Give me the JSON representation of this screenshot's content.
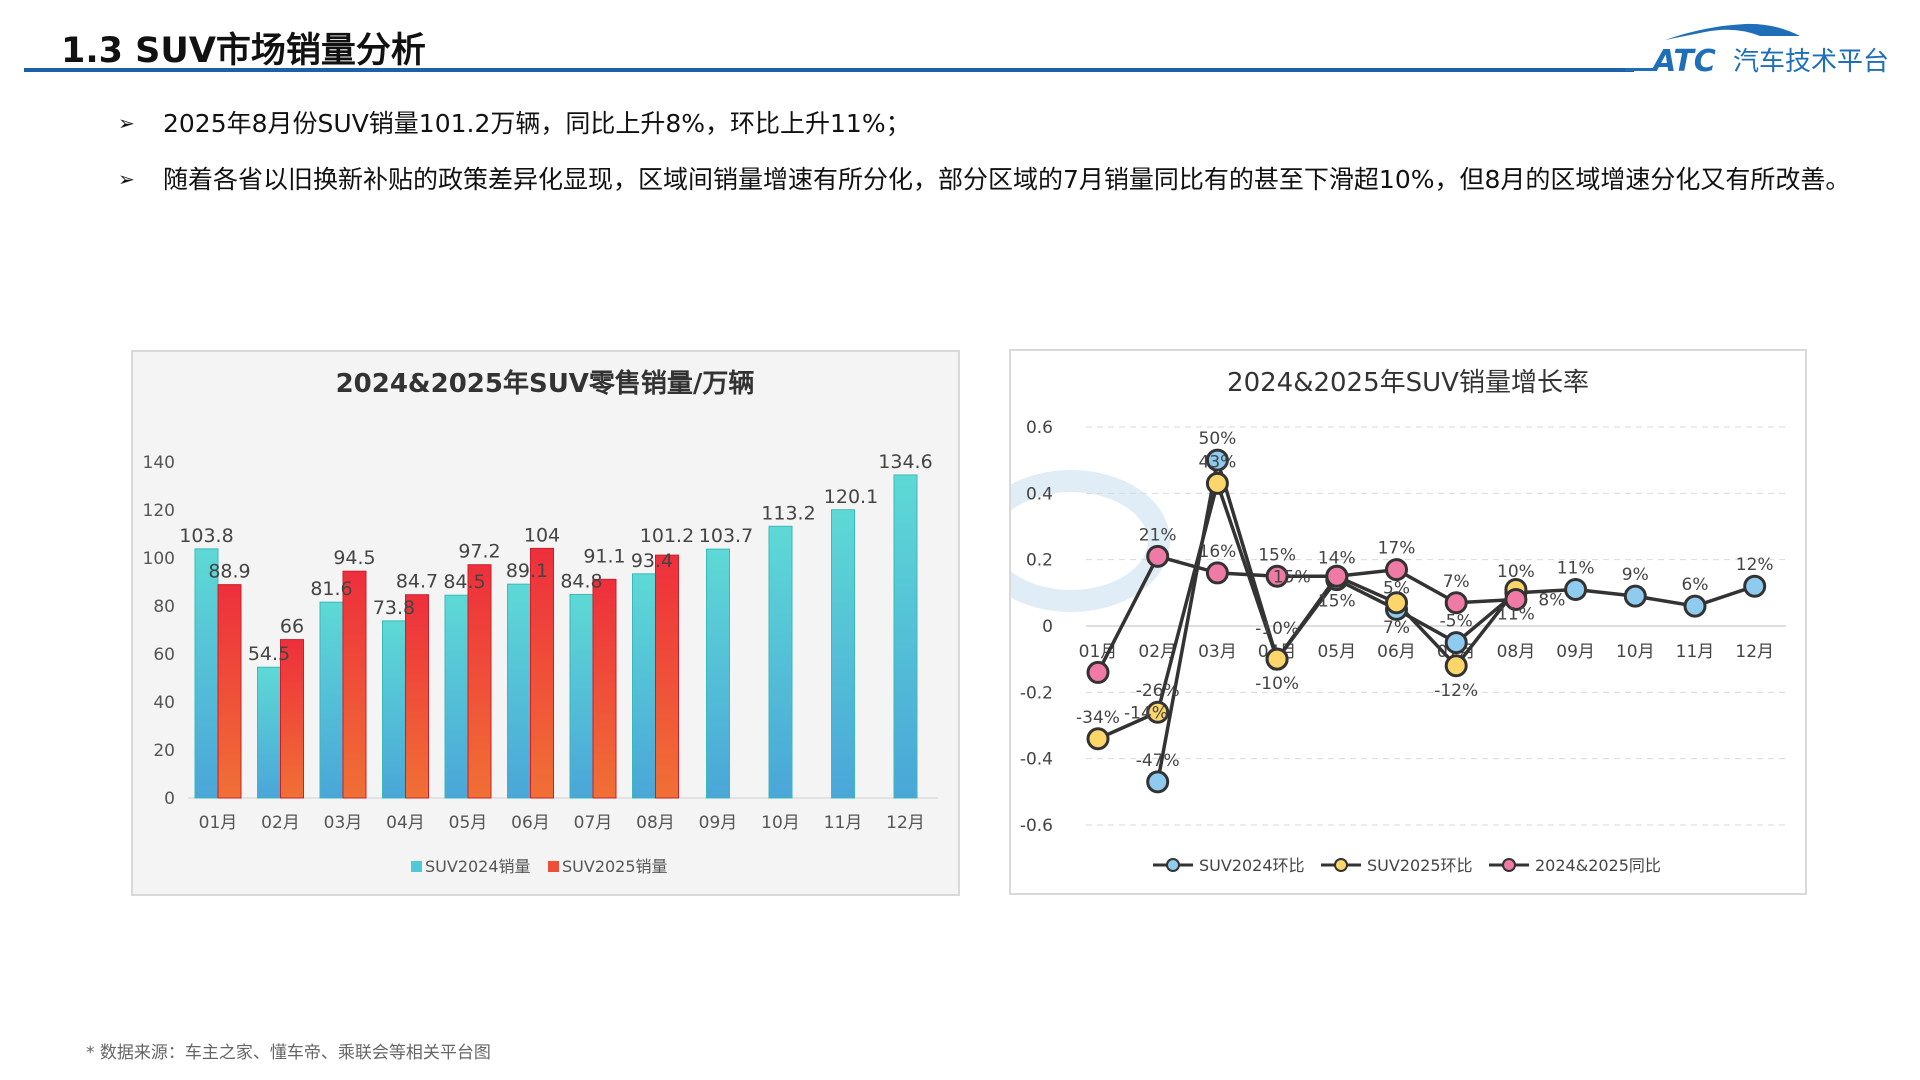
{
  "header": {
    "title": "1.3 SUV市场销量分析",
    "logo_text": "ATC汽车技术平台",
    "accent": "#1f5fa8"
  },
  "bullets": [
    {
      "icon": "arrow-bullet-icon",
      "text": "2025年8月份SUV销量101.2万辆，同比上升8%，环比上升11%；"
    },
    {
      "icon": "arrow-bullet-icon",
      "text": "随着各省以旧换新补贴的政策差异化显现，区域间销量增速有所分化，部分区域的7月销量同比有的甚至下滑超10%，但8月的区域增速分化又有所改善。"
    }
  ],
  "footnote": "* 数据来源：车主之家、懂车帝、乘联会等相关平台图",
  "chart_data": [
    {
      "type": "bar",
      "title": "2024&2025年SUV零售销量/万辆",
      "categories": [
        "01月",
        "02月",
        "03月",
        "04月",
        "05月",
        "06月",
        "07月",
        "08月",
        "09月",
        "10月",
        "11月",
        "12月"
      ],
      "ylim": [
        0,
        140
      ],
      "yticks": [
        0,
        20,
        40,
        60,
        80,
        100,
        120,
        140
      ],
      "grid": false,
      "legend": "bottom",
      "watermark": "ATC 汽车技术平台 Automotive Technology Center",
      "series": [
        {
          "name": "SUV2024销量",
          "color": "#4fd0d0",
          "values": [
            103.8,
            54.5,
            81.6,
            73.8,
            84.5,
            89.1,
            84.8,
            93.4,
            103.7,
            113.2,
            120.1,
            134.6
          ]
        },
        {
          "name": "SUV2025销量",
          "color": "#ee3a3a",
          "values": [
            88.9,
            66,
            94.5,
            84.7,
            97.2,
            104,
            91.1,
            101.2,
            null,
            null,
            null,
            null
          ]
        }
      ]
    },
    {
      "type": "line",
      "title": "2024&2025年SUV销量增长率",
      "categories": [
        "01月",
        "02月",
        "03月",
        "04月",
        "05月",
        "06月",
        "07月",
        "08月",
        "09月",
        "10月",
        "11月",
        "12月"
      ],
      "ylim": [
        -0.6,
        0.6
      ],
      "yticks": [
        "-0.6",
        "-0.4",
        "-0.2",
        "0",
        "0.2",
        "0.4",
        "0.6"
      ],
      "grid": true,
      "legend": "bottom",
      "watermark": "大东时代 DADONG TIMES",
      "series": [
        {
          "name": "SUV2024环比",
          "color": "#8ecbef",
          "values": [
            null,
            -0.47,
            0.5,
            -0.1,
            0.14,
            0.05,
            -0.05,
            0.1,
            0.11,
            0.09,
            0.06,
            0.12
          ],
          "labels": [
            "",
            "-47%",
            "50%",
            "-10%",
            "14%",
            "5%",
            "-5%",
            "10%",
            "11%",
            "9%",
            "6%",
            "12%"
          ]
        },
        {
          "name": "SUV2025环比",
          "color": "#fdd66b",
          "values": [
            -0.34,
            -0.26,
            0.43,
            -0.1,
            0.15,
            0.07,
            -0.12,
            0.11,
            null,
            null,
            null,
            null
          ],
          "labels": [
            "-34%",
            "-26%",
            "43%",
            "-10%",
            "15%",
            "7%",
            "-12%",
            "11%",
            "",
            "",
            "",
            ""
          ]
        },
        {
          "name": "2024&2025同比",
          "color": "#f07aa6",
          "values": [
            -0.14,
            0.21,
            0.16,
            0.15,
            0.15,
            0.17,
            0.07,
            0.08,
            null,
            null,
            null,
            null
          ],
          "labels": [
            "-14%",
            "21%",
            "16%",
            "15%",
            "15%",
            "17%",
            "7%",
            "8%",
            "",
            "",
            "",
            ""
          ]
        }
      ]
    }
  ]
}
